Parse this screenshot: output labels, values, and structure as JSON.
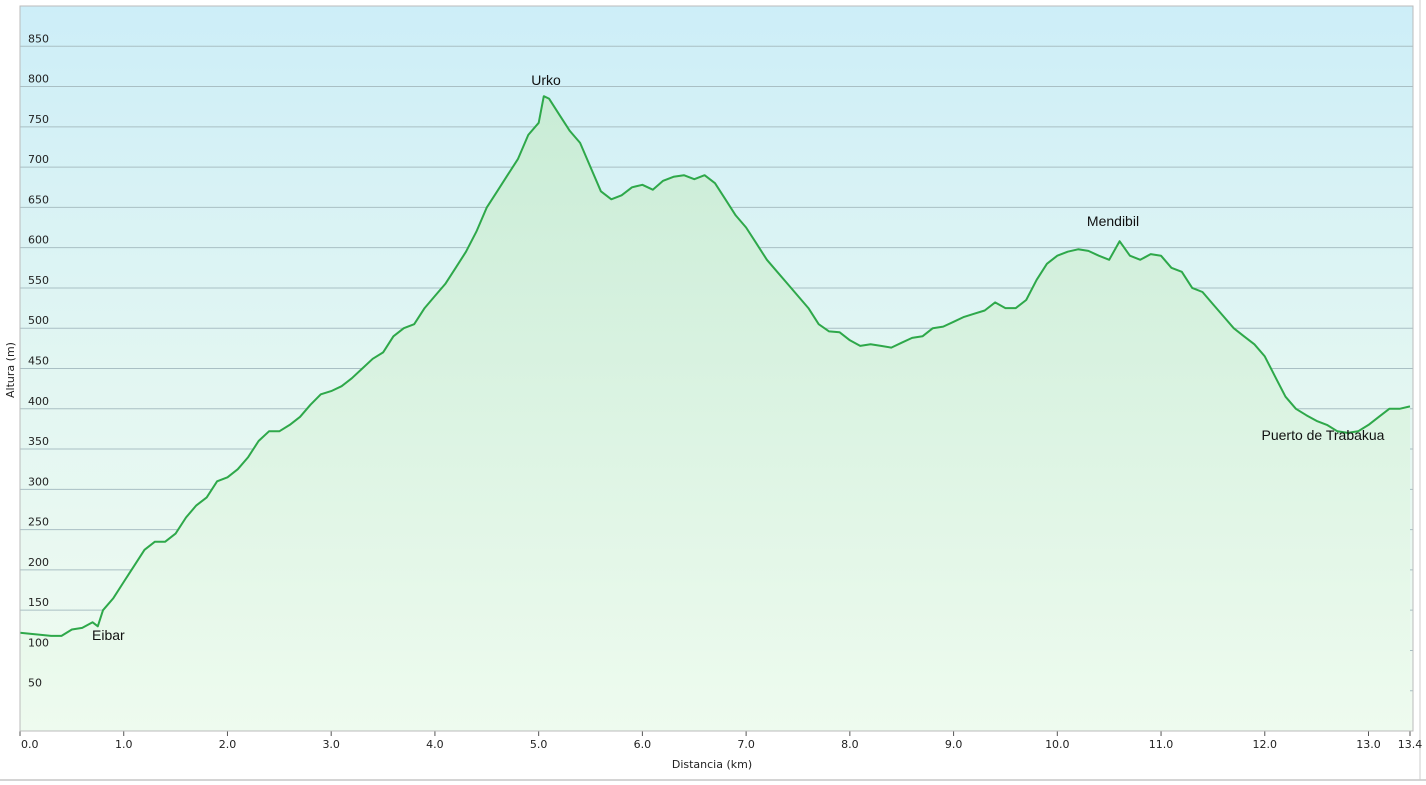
{
  "chart_data": {
    "type": "area",
    "x_label": "Distancia  (km)",
    "y_label": "Altura (m)",
    "line_color": "#2ea84a",
    "grid": true,
    "xlim": [
      0,
      13.4
    ],
    "ylim": [
      0,
      900
    ],
    "xticks": [
      {
        "value": 0,
        "label": "0.0"
      },
      {
        "value": 1,
        "label": "1.0"
      },
      {
        "value": 2,
        "label": "2.0"
      },
      {
        "value": 3,
        "label": "3.0"
      },
      {
        "value": 4,
        "label": "4.0"
      },
      {
        "value": 5,
        "label": "5.0"
      },
      {
        "value": 6,
        "label": "6.0"
      },
      {
        "value": 7,
        "label": "7.0"
      },
      {
        "value": 8,
        "label": "8.0"
      },
      {
        "value": 9,
        "label": "9.0"
      },
      {
        "value": 10,
        "label": "10.0"
      },
      {
        "value": 11,
        "label": "11.0"
      },
      {
        "value": 12,
        "label": "12.0"
      },
      {
        "value": 13,
        "label": "13.0"
      },
      13.4
    ],
    "yticks": [
      50,
      100,
      150,
      200,
      250,
      300,
      350,
      400,
      450,
      500,
      550,
      600,
      650,
      700,
      750,
      800,
      850
    ],
    "x": [
      0,
      0.3,
      0.4,
      0.5,
      0.6,
      0.7,
      0.75,
      0.8,
      0.9,
      1.0,
      1.1,
      1.2,
      1.3,
      1.4,
      1.5,
      1.6,
      1.7,
      1.8,
      1.9,
      2.0,
      2.1,
      2.2,
      2.3,
      2.4,
      2.5,
      2.6,
      2.7,
      2.8,
      2.9,
      3.0,
      3.1,
      3.2,
      3.3,
      3.4,
      3.5,
      3.6,
      3.7,
      3.8,
      3.9,
      4.0,
      4.1,
      4.2,
      4.3,
      4.4,
      4.5,
      4.6,
      4.7,
      4.8,
      4.9,
      5.0,
      5.05,
      5.1,
      5.2,
      5.3,
      5.4,
      5.5,
      5.6,
      5.7,
      5.8,
      5.9,
      6.0,
      6.1,
      6.2,
      6.3,
      6.4,
      6.5,
      6.6,
      6.7,
      6.8,
      6.9,
      7.0,
      7.1,
      7.2,
      7.3,
      7.4,
      7.5,
      7.6,
      7.7,
      7.8,
      7.9,
      8.0,
      8.1,
      8.2,
      8.3,
      8.4,
      8.5,
      8.6,
      8.7,
      8.8,
      8.9,
      9.0,
      9.1,
      9.2,
      9.3,
      9.4,
      9.5,
      9.6,
      9.7,
      9.8,
      9.9,
      10.0,
      10.1,
      10.2,
      10.3,
      10.4,
      10.5,
      10.6,
      10.7,
      10.8,
      10.9,
      11.0,
      11.1,
      11.2,
      11.3,
      11.4,
      11.5,
      11.6,
      11.7,
      11.8,
      11.9,
      12.0,
      12.1,
      12.2,
      12.3,
      12.4,
      12.5,
      12.6,
      12.7,
      12.8,
      12.9,
      13.0,
      13.1,
      13.2,
      13.3,
      13.4
    ],
    "values": [
      122,
      118,
      118,
      126,
      128,
      135,
      130,
      150,
      165,
      185,
      205,
      225,
      235,
      235,
      245,
      265,
      280,
      290,
      310,
      315,
      325,
      340,
      360,
      372,
      372,
      380,
      390,
      405,
      418,
      422,
      428,
      438,
      450,
      462,
      470,
      490,
      500,
      505,
      525,
      540,
      555,
      575,
      595,
      620,
      650,
      670,
      690,
      710,
      740,
      755,
      788,
      785,
      765,
      745,
      730,
      700,
      670,
      660,
      665,
      675,
      678,
      672,
      683,
      688,
      690,
      685,
      690,
      680,
      660,
      640,
      625,
      605,
      585,
      570,
      555,
      540,
      525,
      505,
      496,
      495,
      485,
      478,
      480,
      478,
      476,
      482,
      488,
      490,
      500,
      502,
      508,
      514,
      518,
      522,
      532,
      525,
      525,
      535,
      560,
      580,
      590,
      595,
      598,
      596,
      590,
      585,
      608,
      590,
      585,
      592,
      590,
      575,
      570,
      550,
      545,
      530,
      515,
      500,
      490,
      480,
      465,
      440,
      415,
      400,
      392,
      385,
      380,
      372,
      370,
      372,
      380,
      390,
      400,
      400,
      403
    ],
    "annotations": [
      {
        "text": "Eibar"
      },
      {
        "text": "Urko"
      },
      {
        "text": "Mendibil"
      },
      {
        "text": "Puerto de Trabakua"
      }
    ]
  }
}
